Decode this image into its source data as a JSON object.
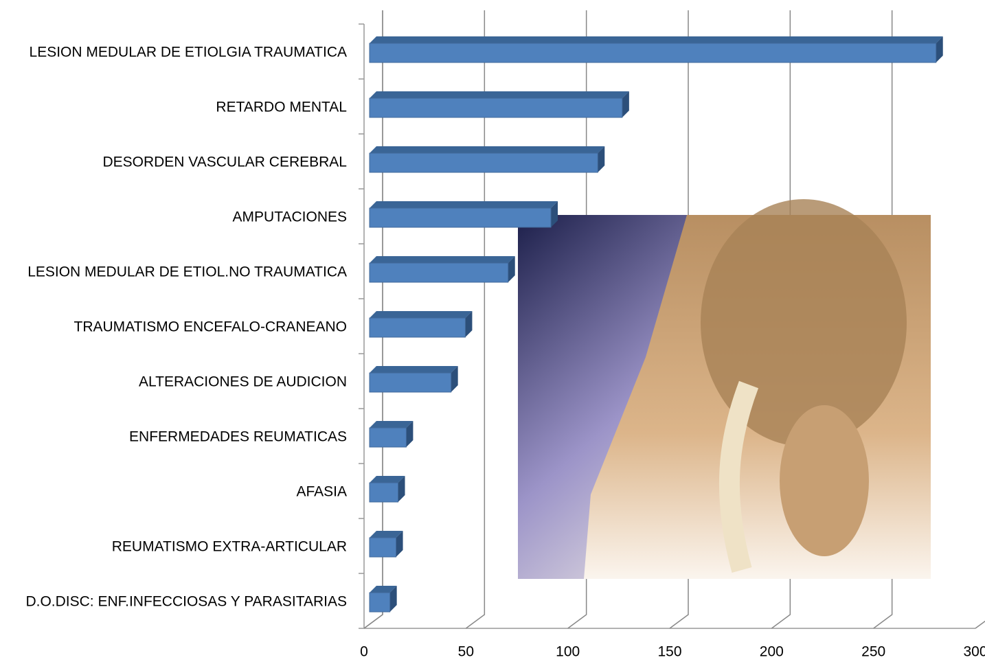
{
  "chart_data": {
    "type": "bar3d-horizontal",
    "categories": [
      "LESION MEDULAR DE ETIOLGIA TRAUMATICA",
      "RETARDO MENTAL",
      "DESORDEN VASCULAR CEREBRAL",
      "AMPUTACIONES",
      "LESION MEDULAR DE ETIOL.NO TRAUMATICA",
      "TRAUMATISMO ENCEFALO-CRANEANO",
      "ALTERACIONES DE AUDICION",
      "ENFERMEDADES REUMATICAS",
      "AFASIA",
      "REUMATISMO EXTRA-ARTICULAR",
      "D.O.DISC: ENF.INFECCIOSAS Y PARASITARIAS"
    ],
    "values": [
      278,
      124,
      112,
      89,
      68,
      47,
      40,
      18,
      14,
      13,
      10
    ],
    "color": "#4f81bd",
    "xlim": [
      0,
      300
    ],
    "xticks": [
      0,
      50,
      100,
      150,
      200,
      250,
      300
    ],
    "grid": true
  }
}
